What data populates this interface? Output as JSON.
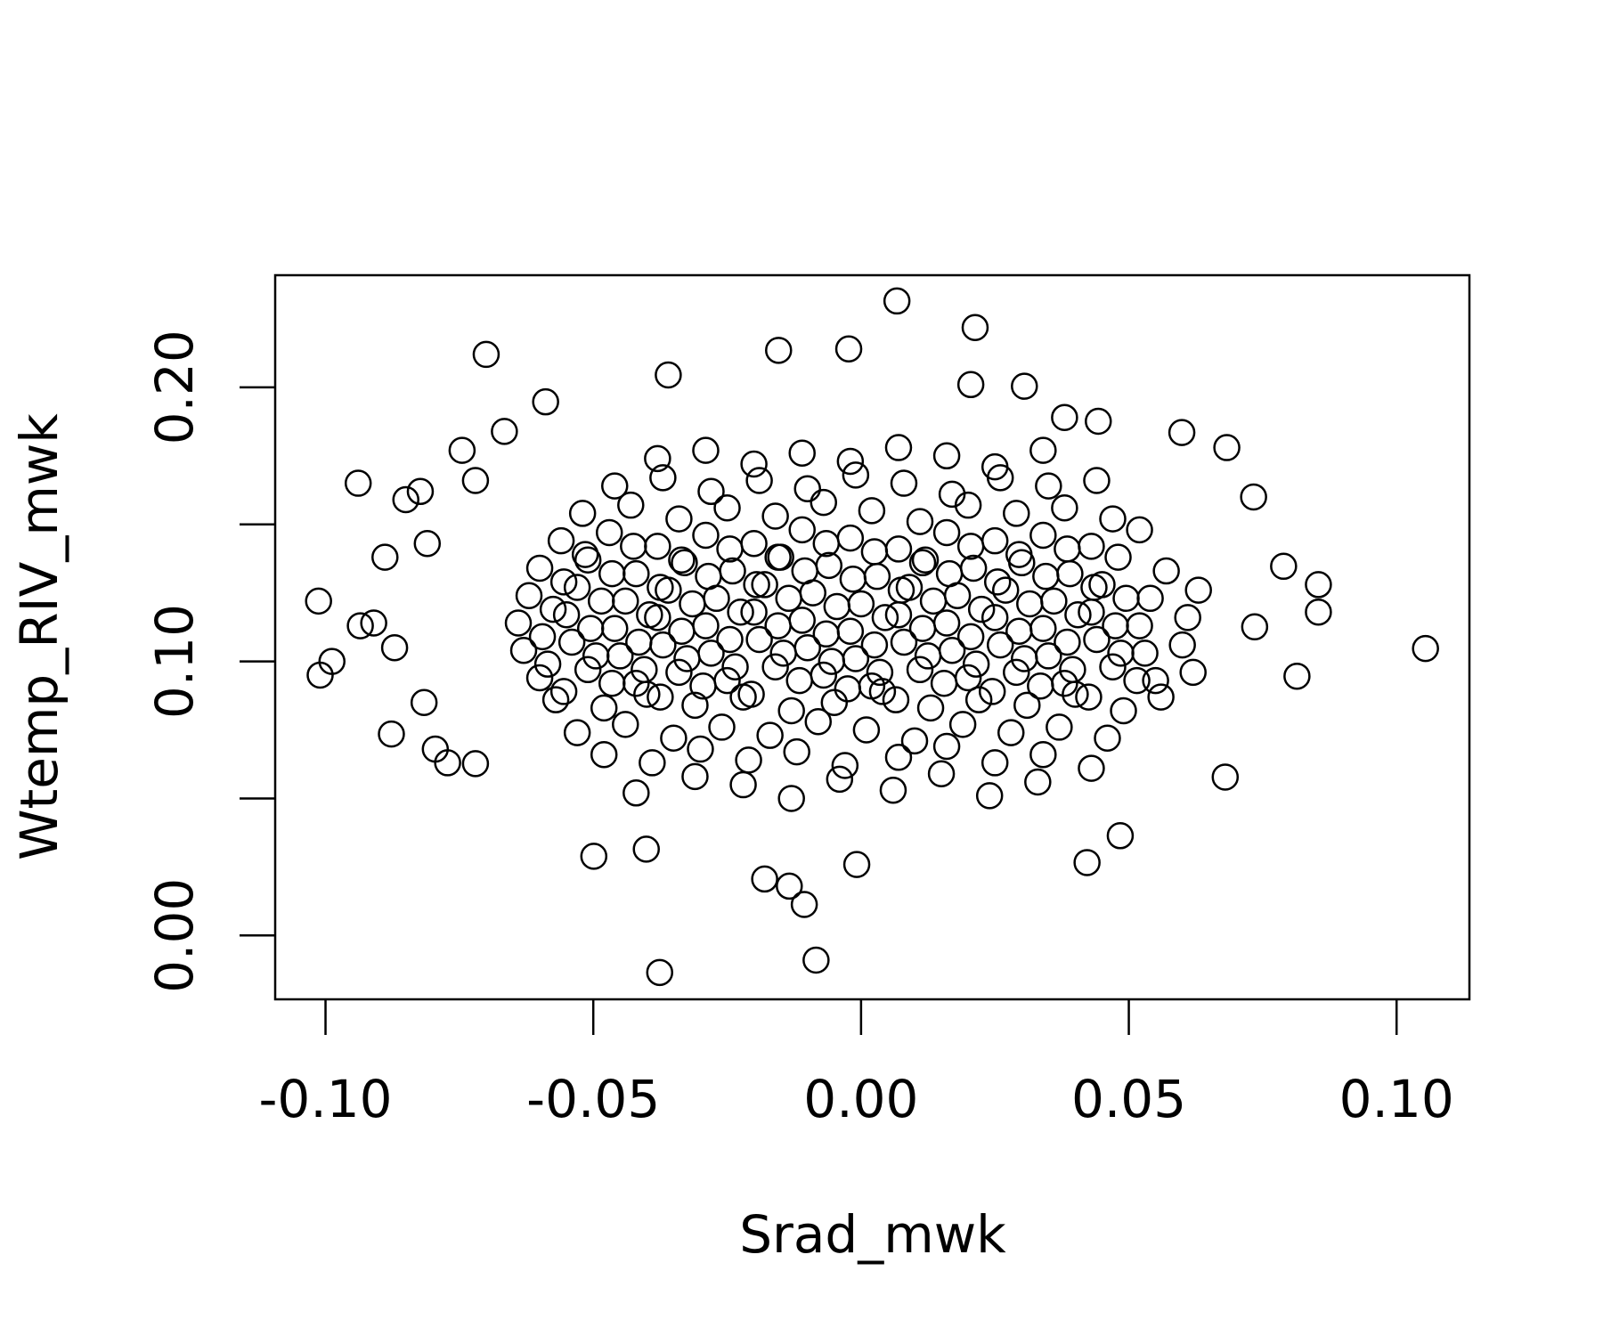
{
  "chart_data": {
    "type": "scatter",
    "xlabel": "Srad_mwk",
    "ylabel": "Wtemp_RIV_mwk",
    "color": "#000000",
    "xlim": [
      -0.1094,
      0.1136
    ],
    "ylim": [
      -0.0233,
      0.2409
    ],
    "xticks": [
      {
        "value": -0.1,
        "label": "-0.10"
      },
      {
        "value": -0.05,
        "label": "-0.05"
      },
      {
        "value": 0,
        "label": "0.00"
      },
      {
        "value": 0.05,
        "label": "0.05"
      },
      {
        "value": 0.1,
        "label": "0.10"
      }
    ],
    "yticks": [
      {
        "value": 0,
        "label": "0.00"
      },
      {
        "value": 0.1,
        "label": "0.10"
      },
      {
        "value": 0.2,
        "label": "0.20"
      }
    ],
    "yticks_minor": [
      0.05,
      0.15
    ],
    "x": [
      -0.1013,
      -0.101,
      -0.0988,
      -0.0939,
      -0.0935,
      -0.091,
      -0.0889,
      -0.0871,
      -0.0877,
      -0.085,
      -0.0823,
      -0.0816,
      -0.081,
      -0.0795,
      -0.0772,
      -0.0745,
      -0.072,
      -0.07,
      -0.072,
      -0.0376,
      -0.0084,
      -0.018,
      -0.0134,
      -0.0106,
      -0.0008,
      -0.0499,
      -0.0401,
      0.0067,
      0.0213,
      -0.0023,
      -0.0154,
      0.1054,
      0.0854,
      0.0854,
      0.0814,
      0.0789,
      0.0733,
      0.0735,
      0.068,
      0.0422,
      0.0484,
      0.0599,
      0.0683,
      0.038,
      0.0443,
      0.0305,
      0.0205,
      -0.036,
      -0.0589,
      -0.0666,
      -0.042,
      -0.031,
      -0.022,
      -0.013,
      -0.004,
      0.006,
      0.015,
      0.024,
      0.033,
      -0.048,
      -0.039,
      -0.03,
      -0.021,
      -0.012,
      -0.003,
      0.007,
      0.016,
      0.025,
      0.034,
      0.043,
      -0.053,
      -0.044,
      -0.035,
      -0.026,
      -0.017,
      -0.008,
      0.001,
      0.01,
      0.019,
      0.028,
      0.037,
      0.046,
      -0.057,
      -0.048,
      -0.04,
      -0.031,
      -0.022,
      -0.013,
      -0.005,
      0.004,
      0.013,
      0.022,
      0.031,
      0.04,
      0.049,
      0.056,
      -0.06,
      -0.051,
      -0.042,
      -0.034,
      -0.025,
      -0.016,
      -0.007,
      0.002,
      0.011,
      0.02,
      0.029,
      0.038,
      0.047,
      0.055,
      0.062,
      -0.063,
      -0.054,
      -0.045,
      -0.037,
      -0.028,
      -0.019,
      -0.01,
      -0.001,
      0.008,
      0.017,
      0.026,
      0.035,
      0.044,
      0.053,
      0.06,
      -0.064,
      -0.055,
      -0.046,
      -0.038,
      -0.029,
      -0.02,
      -0.011,
      -0.002,
      0.007,
      0.016,
      0.025,
      0.034,
      0.043,
      0.052,
      0.061,
      -0.062,
      -0.053,
      -0.044,
      -0.036,
      -0.027,
      -0.018,
      -0.009,
      0.0,
      0.009,
      0.018,
      0.027,
      0.036,
      0.045,
      0.054,
      0.063,
      -0.06,
      -0.051,
      -0.042,
      -0.033,
      -0.024,
      -0.015,
      -0.006,
      0.003,
      0.012,
      0.021,
      0.03,
      0.039,
      0.048,
      0.057,
      -0.056,
      -0.047,
      -0.038,
      -0.029,
      -0.02,
      -0.011,
      -0.002,
      0.007,
      0.016,
      0.025,
      0.034,
      0.043,
      0.052,
      -0.052,
      -0.043,
      -0.034,
      -0.025,
      -0.016,
      -0.007,
      0.002,
      0.011,
      0.02,
      0.029,
      0.038,
      0.047,
      -0.046,
      -0.037,
      -0.028,
      -0.019,
      -0.01,
      -0.001,
      0.008,
      0.017,
      0.026,
      0.035,
      0.044,
      -0.038,
      -0.029,
      -0.02,
      -0.011,
      -0.002,
      0.007,
      0.016,
      0.025,
      0.034,
      -0.0555,
      -0.0465,
      -0.0375,
      -0.0295,
      -0.0205,
      -0.0115,
      -0.0025,
      0.0065,
      0.0155,
      0.0245,
      0.0335,
      0.0425,
      0.0515,
      -0.0585,
      -0.0495,
      -0.0405,
      -0.0325,
      -0.0235,
      -0.0145,
      -0.0055,
      0.0035,
      0.0125,
      0.0215,
      0.0305,
      0.0395,
      0.0485,
      -0.0595,
      -0.0505,
      -0.0415,
      -0.0335,
      -0.0245,
      -0.0155,
      -0.0065,
      0.0025,
      0.0115,
      0.0205,
      0.0295,
      0.0385,
      0.0475,
      -0.0575,
      -0.0485,
      -0.0395,
      -0.0315,
      -0.0225,
      -0.0135,
      -0.0045,
      0.0045,
      0.0135,
      0.0225,
      0.0315,
      0.0405,
      0.0495,
      -0.0555,
      -0.0465,
      -0.0375,
      -0.0285,
      -0.0195,
      -0.0105,
      -0.0015,
      0.0075,
      0.0165,
      0.0255,
      0.0345,
      0.0435,
      -0.0515,
      -0.0425,
      -0.0335,
      -0.0245,
      -0.0155,
      -0.0065,
      0.0025,
      0.0115,
      0.0205,
      0.0295,
      0.0385
    ],
    "values": [
      0.122,
      0.095,
      0.1,
      0.165,
      0.113,
      0.114,
      0.138,
      0.105,
      0.0735,
      0.159,
      0.162,
      0.085,
      0.143,
      0.068,
      0.063,
      0.177,
      0.166,
      0.212,
      0.0627,
      -0.0135,
      -0.009,
      0.0206,
      0.018,
      0.0113,
      0.0259,
      0.0289,
      0.0315,
      0.2315,
      0.2218,
      0.214,
      0.2135,
      0.1047,
      0.128,
      0.118,
      0.0946,
      0.1347,
      0.16,
      0.1126,
      0.0578,
      0.0266,
      0.0364,
      0.1835,
      0.178,
      0.189,
      0.1876,
      0.2004,
      0.201,
      0.2045,
      0.1947,
      0.1839,
      0.052,
      0.058,
      0.055,
      0.05,
      0.057,
      0.053,
      0.059,
      0.051,
      0.056,
      0.066,
      0.063,
      0.068,
      0.064,
      0.067,
      0.062,
      0.065,
      0.069,
      0.063,
      0.066,
      0.061,
      0.074,
      0.077,
      0.072,
      0.076,
      0.073,
      0.078,
      0.075,
      0.071,
      0.077,
      0.074,
      0.076,
      0.072,
      0.086,
      0.083,
      0.088,
      0.084,
      0.087,
      0.082,
      0.085,
      0.089,
      0.083,
      0.086,
      0.084,
      0.088,
      0.082,
      0.087,
      0.094,
      0.097,
      0.092,
      0.096,
      0.093,
      0.098,
      0.095,
      0.091,
      0.097,
      0.094,
      0.096,
      0.092,
      0.098,
      0.093,
      0.096,
      0.104,
      0.107,
      0.102,
      0.106,
      0.103,
      0.108,
      0.105,
      0.101,
      0.107,
      0.104,
      0.106,
      0.102,
      0.108,
      0.103,
      0.106,
      0.114,
      0.117,
      0.112,
      0.116,
      0.113,
      0.118,
      0.115,
      0.111,
      0.117,
      0.114,
      0.116,
      0.112,
      0.118,
      0.113,
      0.116,
      0.124,
      0.127,
      0.122,
      0.126,
      0.123,
      0.128,
      0.125,
      0.121,
      0.127,
      0.124,
      0.126,
      0.122,
      0.128,
      0.123,
      0.126,
      0.134,
      0.137,
      0.132,
      0.136,
      0.133,
      0.138,
      0.135,
      0.131,
      0.137,
      0.134,
      0.136,
      0.132,
      0.138,
      0.133,
      0.144,
      0.147,
      0.142,
      0.146,
      0.143,
      0.148,
      0.145,
      0.141,
      0.147,
      0.144,
      0.146,
      0.142,
      0.148,
      0.154,
      0.157,
      0.152,
      0.156,
      0.153,
      0.158,
      0.155,
      0.151,
      0.157,
      0.154,
      0.156,
      0.152,
      0.164,
      0.167,
      0.162,
      0.166,
      0.163,
      0.168,
      0.165,
      0.161,
      0.167,
      0.164,
      0.166,
      0.174,
      0.177,
      0.172,
      0.176,
      0.173,
      0.178,
      0.175,
      0.171,
      0.177,
      0.089,
      0.092,
      0.087,
      0.091,
      0.088,
      0.093,
      0.09,
      0.086,
      0.092,
      0.089,
      0.091,
      0.087,
      0.093,
      0.099,
      0.102,
      0.097,
      0.101,
      0.098,
      0.103,
      0.1,
      0.096,
      0.102,
      0.099,
      0.101,
      0.097,
      0.103,
      0.109,
      0.112,
      0.107,
      0.111,
      0.108,
      0.113,
      0.11,
      0.106,
      0.112,
      0.109,
      0.111,
      0.107,
      0.113,
      0.119,
      0.122,
      0.117,
      0.121,
      0.118,
      0.123,
      0.12,
      0.116,
      0.122,
      0.119,
      0.121,
      0.117,
      0.123,
      0.129,
      0.132,
      0.127,
      0.131,
      0.128,
      0.133,
      0.13,
      0.126,
      0.132,
      0.129,
      0.131,
      0.127,
      0.139,
      0.142,
      0.137,
      0.141,
      0.138,
      0.143,
      0.14,
      0.136,
      0.142,
      0.139,
      0.141
    ]
  }
}
